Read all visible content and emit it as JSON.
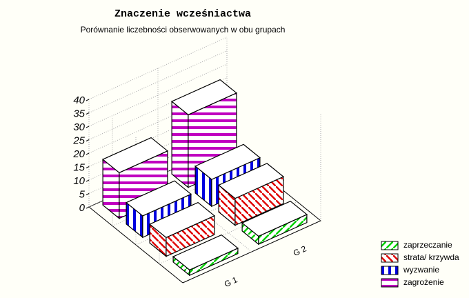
{
  "chart_data": {
    "type": "bar3d",
    "title": "Znaczenie wcześniactwa",
    "subtitle": "Porównanie liczebności obserwowanych w obu grupach",
    "categories": [
      "G 1",
      "G 2"
    ],
    "series": [
      {
        "name": "zaprzeczanie",
        "color": "#00d000",
        "values": [
          2,
          3
        ]
      },
      {
        "name": "strata/ krzywda",
        "color": "#e00000",
        "values": [
          7,
          10
        ]
      },
      {
        "name": "wyzwanie",
        "color": "#0000e0",
        "values": [
          8,
          10
        ]
      },
      {
        "name": "zagrożenie",
        "color": "#c000c0",
        "values": [
          17,
          27
        ]
      }
    ],
    "zlim": [
      0,
      40
    ],
    "zticks": [
      0,
      5,
      10,
      15,
      20,
      25,
      30,
      35,
      40
    ],
    "grid": true
  }
}
